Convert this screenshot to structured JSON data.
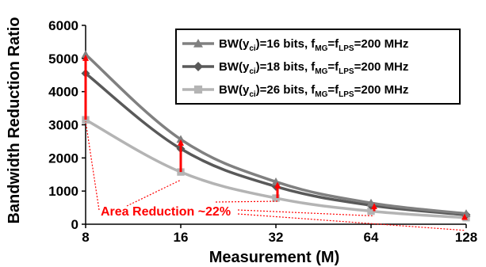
{
  "chart_data": {
    "type": "line",
    "x": [
      "8",
      "16",
      "32",
      "64",
      "128"
    ],
    "xlabel": "Measurement (M)",
    "ylabel": "Bandwidth Reduction Ratio",
    "ylim": [
      0,
      6000
    ],
    "yticks": [
      "0",
      "1000",
      "2000",
      "3000",
      "4000",
      "5000",
      "6000"
    ],
    "grid": false,
    "legend_position": "top-right",
    "series": [
      {
        "legend": {
          "pre": "BW(y",
          "sub1": "ci",
          "mid": ")=16 bits, f",
          "sub2": "MG",
          "eq": "=f",
          "sub3": "LPS",
          "post": "=200 MHz"
        },
        "marker": "triangle",
        "color": "#808080",
        "values": [
          5120,
          2560,
          1280,
          640,
          320
        ]
      },
      {
        "legend": {
          "pre": "BW(y",
          "sub1": "ci",
          "mid": ")=18 bits, f",
          "sub2": "MG",
          "eq": "=f",
          "sub3": "LPS",
          "post": "=200 MHz"
        },
        "marker": "diamond",
        "color": "#595959",
        "values": [
          4551,
          2276,
          1138,
          569,
          284
        ]
      },
      {
        "legend": {
          "pre": "BW(y",
          "sub1": "ci",
          "mid": ")=26 bits, f",
          "sub2": "MG",
          "eq": "=f",
          "sub3": "LPS",
          "post": "=200 MHz"
        },
        "marker": "square",
        "color": "#b4b4b4",
        "values": [
          3151,
          1575,
          788,
          394,
          197
        ]
      }
    ],
    "annotation": {
      "text": "Area Reduction ~22%",
      "color": "#ff0000"
    }
  }
}
